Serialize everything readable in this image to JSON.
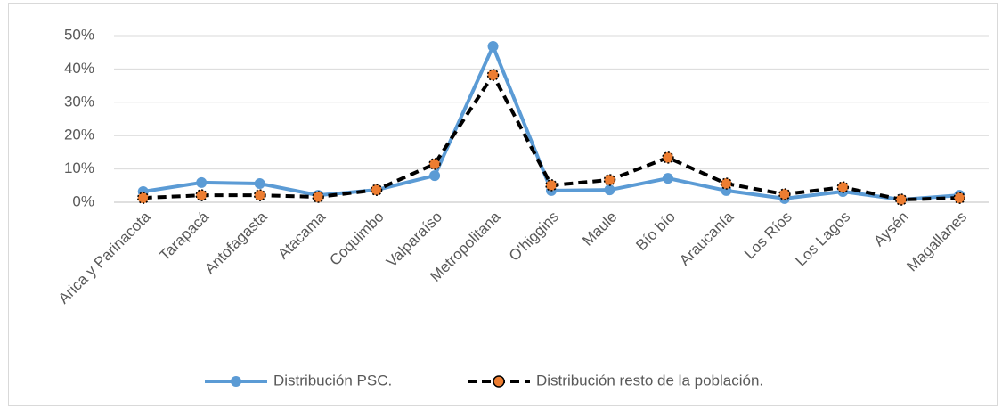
{
  "chart_data": {
    "type": "line",
    "categories": [
      "Arica y Parinacota",
      "Tarapacá",
      "Antofagasta",
      "Atacama",
      "Coquimbo",
      "Valparaíso",
      "Metropolitana",
      "O'higgins",
      "Maule",
      "Bío bío",
      "Araucanía",
      "Los Ríos",
      "Los Lagos",
      "Aysén",
      "Magallanes"
    ],
    "series": [
      {
        "name": "Distribución PSC.",
        "color": "#5b9bd5",
        "values": [
          3.2,
          5.9,
          5.6,
          2.1,
          3.7,
          8.0,
          46.8,
          3.5,
          3.7,
          7.2,
          3.5,
          1.1,
          3.2,
          0.8,
          2.1
        ]
      },
      {
        "name": "Distribución resto de la población.",
        "color": "#ed7d31",
        "values": [
          1.3,
          2.1,
          2.1,
          1.6,
          3.7,
          11.5,
          38.2,
          5.1,
          6.7,
          13.4,
          5.6,
          2.4,
          4.5,
          0.8,
          1.3
        ]
      }
    ],
    "ylim": [
      0,
      50
    ],
    "yticks": [
      {
        "value": 0,
        "label": "0%"
      },
      {
        "value": 10,
        "label": "10%"
      },
      {
        "value": 20,
        "label": "20%"
      },
      {
        "value": 30,
        "label": "30%"
      },
      {
        "value": 40,
        "label": "40%"
      },
      {
        "value": 50,
        "label": "50%"
      }
    ],
    "grid": true,
    "legend": "bottom"
  }
}
